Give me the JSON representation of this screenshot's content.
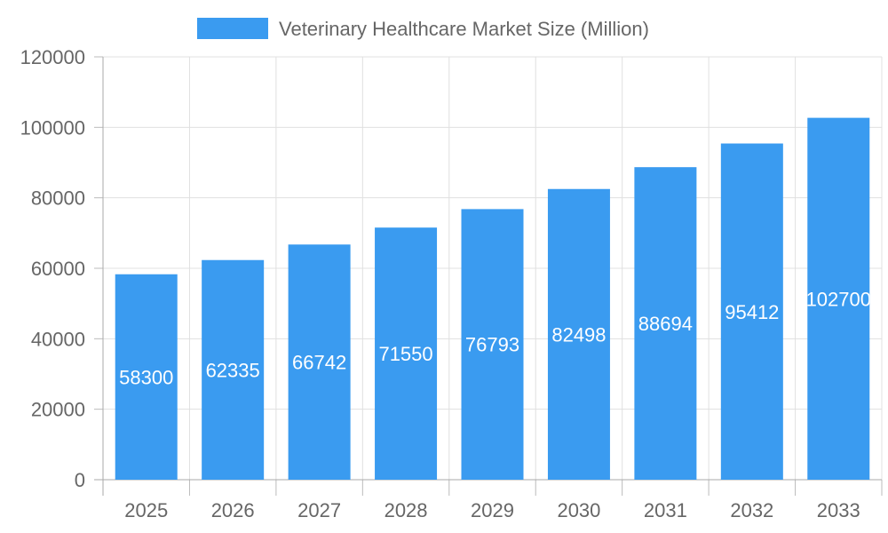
{
  "chart_data": {
    "type": "bar",
    "title": "",
    "xlabel": "",
    "ylabel": "",
    "categories": [
      "2025",
      "2026",
      "2027",
      "2028",
      "2029",
      "2030",
      "2031",
      "2032",
      "2033"
    ],
    "series": [
      {
        "name": "Veterinary Healthcare Market Size (Million)",
        "values": [
          58300,
          62335,
          66742,
          71550,
          76793,
          82498,
          88694,
          95412,
          102700
        ],
        "color": "#3a9bf0"
      }
    ],
    "ylim": [
      0,
      120000
    ],
    "yticks": [
      0,
      20000,
      40000,
      60000,
      80000,
      100000,
      120000
    ],
    "grid": true,
    "legend": "top-center",
    "data_labels": true
  }
}
